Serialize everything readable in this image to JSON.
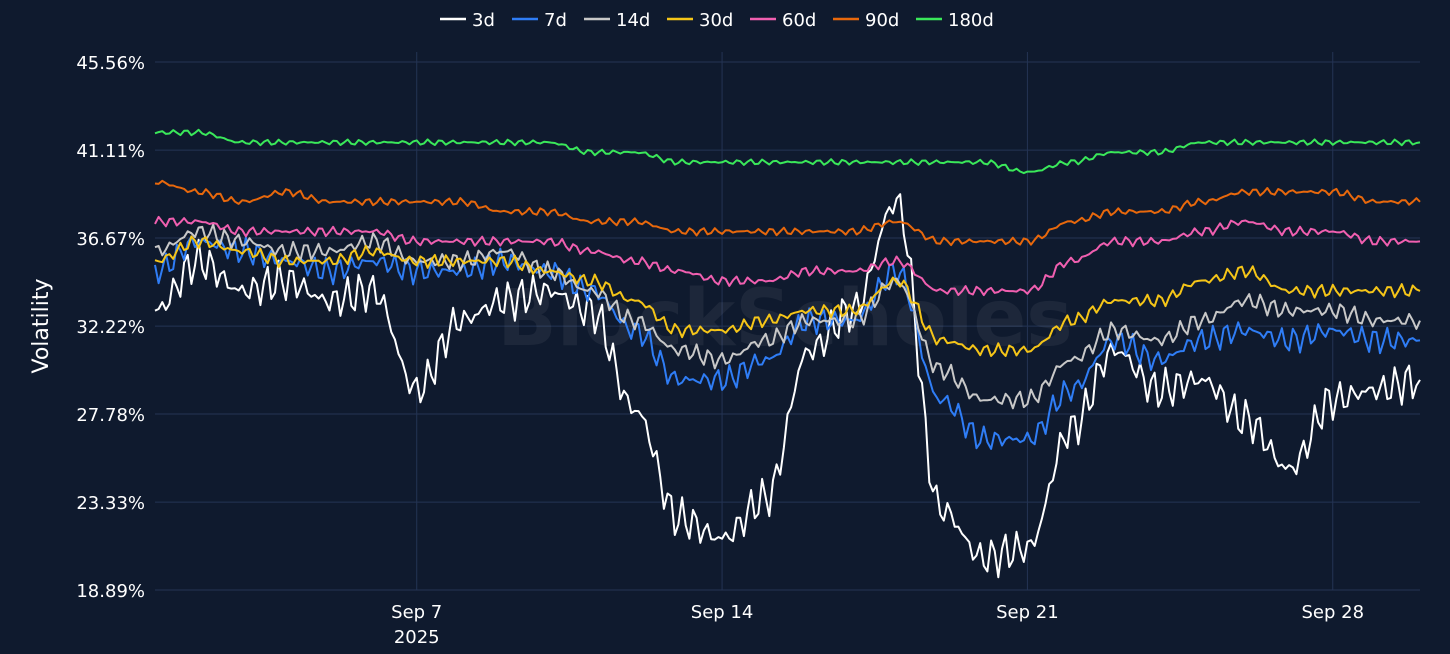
{
  "chart_data": {
    "type": "line",
    "title": "",
    "xlabel": "",
    "ylabel": "Volatility",
    "ylim": [
      18.89,
      45.56
    ],
    "y_ticks": [
      "18.89%",
      "23.33%",
      "27.78%",
      "32.22%",
      "36.67%",
      "41.11%",
      "45.56%"
    ],
    "y_tick_values": [
      18.89,
      23.33,
      27.78,
      32.22,
      36.67,
      41.11,
      45.56
    ],
    "x_ticks": [
      {
        "date": "2025-09-07",
        "label": "Sep 7",
        "sublabel": "2025"
      },
      {
        "date": "2025-09-14",
        "label": "Sep 14",
        "sublabel": ""
      },
      {
        "date": "2025-09-21",
        "label": "Sep 21",
        "sublabel": ""
      },
      {
        "date": "2025-09-28",
        "label": "Sep 28",
        "sublabel": ""
      }
    ],
    "xlim": [
      "2025-09-01",
      "2025-09-30"
    ],
    "grid": true,
    "legend_position": "top-center",
    "watermark": "BlockScholes",
    "x": [
      "2025-09-01",
      "2025-09-02",
      "2025-09-03",
      "2025-09-04",
      "2025-09-05",
      "2025-09-06",
      "2025-09-07",
      "2025-09-08",
      "2025-09-09",
      "2025-09-10",
      "2025-09-11",
      "2025-09-12",
      "2025-09-13",
      "2025-09-14",
      "2025-09-15",
      "2025-09-16",
      "2025-09-17",
      "2025-09-18",
      "2025-09-19",
      "2025-09-20",
      "2025-09-21",
      "2025-09-22",
      "2025-09-23",
      "2025-09-24",
      "2025-09-25",
      "2025-09-26",
      "2025-09-27",
      "2025-09-28",
      "2025-09-29",
      "2025-09-30"
    ],
    "series": [
      {
        "name": "3d",
        "color": "#ffffff",
        "values": [
          33.0,
          35.5,
          34.0,
          34.5,
          33.5,
          34.0,
          29.0,
          32.5,
          33.5,
          34.0,
          33.0,
          28.0,
          22.5,
          21.5,
          23.5,
          31.0,
          33.0,
          38.5,
          23.0,
          20.5,
          21.0,
          27.0,
          31.0,
          29.0,
          29.5,
          27.5,
          25.0,
          28.5,
          29.0,
          29.5
        ]
      },
      {
        "name": "7d",
        "color": "#2f7df6",
        "values": [
          35.0,
          36.5,
          36.0,
          35.5,
          35.0,
          35.5,
          35.0,
          35.0,
          35.5,
          35.0,
          34.0,
          32.0,
          29.5,
          29.5,
          30.5,
          32.5,
          32.5,
          35.0,
          28.5,
          26.5,
          26.5,
          29.0,
          31.5,
          30.5,
          31.5,
          32.0,
          31.5,
          32.0,
          31.5,
          31.5
        ]
      },
      {
        "name": "14d",
        "color": "#c8c8c8",
        "values": [
          36.0,
          37.0,
          36.5,
          36.0,
          36.0,
          36.5,
          35.5,
          35.5,
          36.0,
          35.0,
          34.0,
          32.5,
          31.0,
          30.5,
          31.5,
          32.5,
          32.5,
          34.5,
          30.0,
          28.5,
          28.5,
          30.5,
          32.0,
          31.5,
          32.5,
          33.5,
          33.0,
          33.0,
          32.5,
          32.5
        ]
      },
      {
        "name": "30d",
        "color": "#f5c518",
        "values": [
          35.5,
          36.5,
          36.0,
          35.5,
          35.5,
          36.0,
          35.5,
          35.5,
          35.5,
          35.0,
          34.5,
          33.5,
          32.0,
          32.0,
          32.5,
          33.0,
          33.0,
          34.5,
          31.5,
          31.0,
          31.0,
          32.5,
          33.5,
          33.5,
          34.5,
          35.0,
          34.0,
          34.0,
          34.0,
          34.0
        ]
      },
      {
        "name": "60d",
        "color": "#f05fb0",
        "values": [
          37.5,
          37.5,
          37.0,
          37.0,
          37.0,
          37.0,
          36.5,
          36.5,
          36.5,
          36.5,
          36.0,
          35.5,
          35.0,
          34.5,
          34.5,
          35.0,
          35.0,
          35.5,
          34.0,
          34.0,
          34.0,
          35.5,
          36.5,
          36.5,
          37.0,
          37.5,
          37.0,
          37.0,
          36.5,
          36.5
        ]
      },
      {
        "name": "90d",
        "color": "#e8680c",
        "values": [
          39.5,
          39.0,
          38.5,
          39.0,
          38.5,
          38.5,
          38.5,
          38.5,
          38.0,
          38.0,
          37.5,
          37.5,
          37.0,
          37.0,
          37.0,
          37.0,
          37.0,
          37.5,
          36.5,
          36.5,
          36.5,
          37.5,
          38.0,
          38.0,
          38.5,
          39.0,
          39.0,
          39.0,
          38.5,
          38.5
        ]
      },
      {
        "name": "180d",
        "color": "#3ae85a",
        "values": [
          42.0,
          42.0,
          41.5,
          41.5,
          41.5,
          41.5,
          41.5,
          41.5,
          41.5,
          41.5,
          41.0,
          41.0,
          40.5,
          40.5,
          40.5,
          40.5,
          40.5,
          40.5,
          40.5,
          40.5,
          40.0,
          40.5,
          41.0,
          41.0,
          41.5,
          41.5,
          41.5,
          41.5,
          41.5,
          41.5
        ]
      }
    ]
  }
}
